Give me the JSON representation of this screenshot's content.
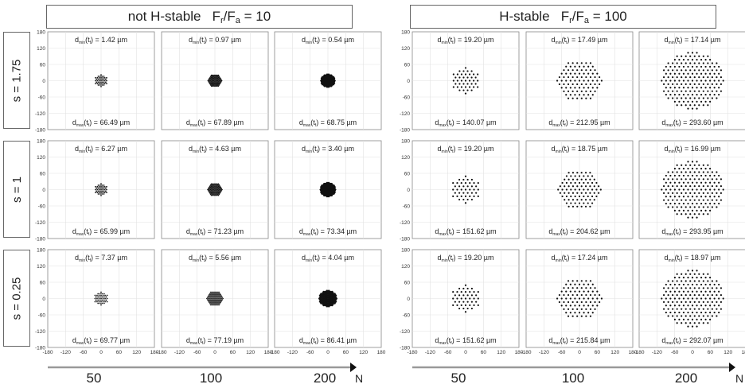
{
  "left_group": {
    "label": "not H-stable",
    "ratio": "F",
    "ratio_sub1": "r",
    "ratio_sub2": "a",
    "ratio_value": "= 10"
  },
  "right_group": {
    "label": "H-stable",
    "ratio": "F",
    "ratio_sub1": "r",
    "ratio_sub2": "a",
    "ratio_value": "= 100"
  },
  "rows": [
    "s = 1.75",
    "s = 1",
    "s = 0.25"
  ],
  "columns_N": [
    "50",
    "100",
    "200"
  ],
  "axis_label": "N",
  "chart_data": {
    "type": "scatter",
    "xlim": [
      -180,
      180
    ],
    "ylim": [
      -180,
      180
    ],
    "x_ticks": [
      "-180",
      "-120",
      "-60",
      "0",
      "60",
      "120",
      "180"
    ],
    "y_ticks": [
      "180",
      "120",
      "60",
      "0",
      "-60",
      "-120",
      "-180"
    ],
    "grid": true,
    "panels": [
      {
        "group": "not H-stable",
        "s": "1.75",
        "N": 50,
        "radius": 22,
        "dmin": "d_min(t_f) = 1.42 µm",
        "dmax": "d_max(t_f) = 66.49 µm"
      },
      {
        "group": "not H-stable",
        "s": "1.75",
        "N": 100,
        "radius": 23,
        "dmin": "d_min(t_f) = 0.97 µm",
        "dmax": "d_max(t_f) = 67.89 µm"
      },
      {
        "group": "not H-stable",
        "s": "1.75",
        "N": 200,
        "radius": 24,
        "dmin": "d_min(t_f) = 0.54 µm",
        "dmax": "d_max(t_f) = 68.75 µm"
      },
      {
        "group": "H-stable",
        "s": "1.75",
        "N": 50,
        "radius": 48,
        "dmin": "d_min(t_f) = 19.20 µm",
        "dmax": "d_max(t_f) = 140.07 µm"
      },
      {
        "group": "H-stable",
        "s": "1.75",
        "N": 100,
        "radius": 75,
        "dmin": "d_min(t_f) = 17.49 µm",
        "dmax": "d_max(t_f) = 212.95 µm"
      },
      {
        "group": "H-stable",
        "s": "1.75",
        "N": 200,
        "radius": 105,
        "dmin": "d_min(t_f) = 17.14 µm",
        "dmax": "d_max(t_f) = 293.60 µm"
      },
      {
        "group": "not H-stable",
        "s": "1",
        "N": 50,
        "radius": 22,
        "dmin": "d_min(t_f) = 6.27 µm",
        "dmax": "d_max(t_f) = 65.99 µm"
      },
      {
        "group": "not H-stable",
        "s": "1",
        "N": 100,
        "radius": 24,
        "dmin": "d_min(t_f) =  4.63 µm",
        "dmax": "d_max(t_f) = 71.23 µm"
      },
      {
        "group": "not H-stable",
        "s": "1",
        "N": 200,
        "radius": 26,
        "dmin": "d_min(t_f) = 3.40 µm",
        "dmax": "d_max(t_f) = 73.34 µm"
      },
      {
        "group": "H-stable",
        "s": "1",
        "N": 50,
        "radius": 50,
        "dmin": "d_min(t_f) = 19.20 µm",
        "dmax": "d_max(t_f) = 151.62 µm"
      },
      {
        "group": "H-stable",
        "s": "1",
        "N": 100,
        "radius": 72,
        "dmin": "d_min(t_f) = 18.75 µm",
        "dmax": "d_max(t_f) = 204.62 µm"
      },
      {
        "group": "H-stable",
        "s": "1",
        "N": 200,
        "radius": 105,
        "dmin": "d_min(t_f) = 16.99 µm",
        "dmax": "d_max(t_f) = 293.95 µm"
      },
      {
        "group": "not H-stable",
        "s": "0.25",
        "N": 50,
        "radius": 24,
        "dmin": "d_min(t_f) = 7.37 µm",
        "dmax": "d_max(t_f) = 69.77 µm"
      },
      {
        "group": "not H-stable",
        "s": "0.25",
        "N": 100,
        "radius": 27,
        "dmin": "d_min(t_f) = 5.56 µm",
        "dmax": "d_max(t_f) = 77.19 µm"
      },
      {
        "group": "not H-stable",
        "s": "0.25",
        "N": 200,
        "radius": 30,
        "dmin": "d_min(t_f) = 4.04 µm",
        "dmax": "d_max(t_f) = 86.41 µm"
      },
      {
        "group": "H-stable",
        "s": "0.25",
        "N": 50,
        "radius": 50,
        "dmin": "d_min(t_f) = 19.20 µm",
        "dmax": "d_max(t_f) = 151.62 µm"
      },
      {
        "group": "H-stable",
        "s": "0.25",
        "N": 100,
        "radius": 75,
        "dmin": "d_min(t_f) = 17.24 µm",
        "dmax": "d_max(t_f) = 215.84 µm"
      },
      {
        "group": "H-stable",
        "s": "0.25",
        "N": 200,
        "radius": 105,
        "dmin": "d_min(t_f) = 18.97 µm",
        "dmax": "d_max(t_f) = 292.07 µm"
      }
    ]
  }
}
